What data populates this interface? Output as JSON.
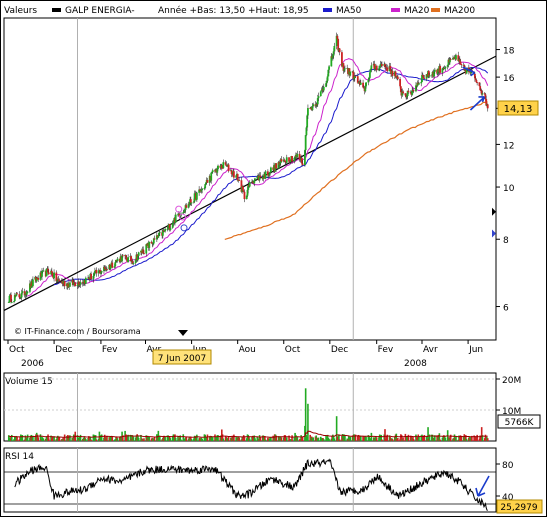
{
  "colors": {
    "up": "#22aa22",
    "down": "#cc2222",
    "wick": "#333333",
    "ma50": "#1a1acc",
    "ma20": "#cc22cc",
    "ma200": "#e07020",
    "trend": "#000000",
    "grid": "#cfcfcf",
    "frame": "#000000",
    "price_box": "#ffd24a",
    "date_box": "#ffe27a",
    "arrow": "#1a3ccc",
    "marker_blue": "#3344cc",
    "marker_pink": "#dd55dd",
    "vol_ma": "#990000",
    "rsi_line": "#000000"
  },
  "chart_data": [
    {
      "type": "line",
      "title": "",
      "legend_placement": "top",
      "legend": {
        "valeurs": "Valeurs",
        "stock": "GALP ENERGIA-",
        "range": "Année +Bas: 13,50 +Haut: 18,95",
        "ma50": "MA50",
        "ma20": "MA20",
        "ma200": "MA200"
      },
      "y_scale": "log",
      "ylim": [
        5.2,
        20.6
      ],
      "yticks": [
        6,
        8,
        10,
        12,
        14,
        16,
        18
      ],
      "last_price_label": "14,13",
      "source": "© IT-Finance.com / Boursorama",
      "date_marker": "7 Jun 2007",
      "x_months": [
        "Oct",
        "Dec",
        "Fev",
        "Avr",
        "Jun",
        "Aou",
        "Oct",
        "Dec",
        "Fev",
        "Avr",
        "Jun"
      ],
      "x_years": [
        "2006",
        "2008"
      ],
      "x_start": "2006-10-01",
      "x_end": "2008-06-30",
      "grid": true,
      "close_anchors": [
        [
          "2006-10-02",
          6.2
        ],
        [
          "2006-10-20",
          6.3
        ],
        [
          "2006-11-10",
          6.8
        ],
        [
          "2006-11-25",
          7.0
        ],
        [
          "2006-12-05",
          6.7
        ],
        [
          "2006-12-20",
          6.6
        ],
        [
          "2007-01-10",
          6.7
        ],
        [
          "2007-01-25",
          6.9
        ],
        [
          "2007-02-10",
          7.1
        ],
        [
          "2007-02-28",
          7.4
        ],
        [
          "2007-03-15",
          7.3
        ],
        [
          "2007-04-01",
          7.7
        ],
        [
          "2007-04-15",
          8.0
        ],
        [
          "2007-05-01",
          8.4
        ],
        [
          "2007-05-15",
          8.9
        ],
        [
          "2007-05-31",
          9.4
        ],
        [
          "2007-06-15",
          9.9
        ],
        [
          "2007-07-01",
          10.7
        ],
        [
          "2007-07-15",
          11.0
        ],
        [
          "2007-08-01",
          10.4
        ],
        [
          "2007-08-10",
          9.6
        ],
        [
          "2007-08-20",
          10.3
        ],
        [
          "2007-09-05",
          10.5
        ],
        [
          "2007-09-20",
          10.9
        ],
        [
          "2007-10-05",
          11.3
        ],
        [
          "2007-10-20",
          11.4
        ],
        [
          "2007-10-28",
          11.0
        ],
        [
          "2007-11-01",
          13.8
        ],
        [
          "2007-11-15",
          14.5
        ],
        [
          "2007-11-25",
          15.6
        ],
        [
          "2007-12-03",
          17.2
        ],
        [
          "2007-12-10",
          18.8
        ],
        [
          "2007-12-17",
          16.8
        ],
        [
          "2008-01-01",
          16.1
        ],
        [
          "2008-01-15",
          15.1
        ],
        [
          "2008-01-25",
          16.6
        ],
        [
          "2008-02-10",
          16.9
        ],
        [
          "2008-02-25",
          16.2
        ],
        [
          "2008-03-05",
          15.0
        ],
        [
          "2008-03-15",
          14.8
        ],
        [
          "2008-04-01",
          16.0
        ],
        [
          "2008-04-20",
          16.4
        ],
        [
          "2008-05-05",
          16.9
        ],
        [
          "2008-05-15",
          17.4
        ],
        [
          "2008-05-25",
          16.6
        ],
        [
          "2008-06-05",
          16.3
        ],
        [
          "2008-06-15",
          15.6
        ],
        [
          "2008-06-27",
          14.13
        ]
      ],
      "ma200_anchors": [
        [
          "2007-07-15",
          8.0
        ],
        [
          "2007-09-01",
          8.4
        ],
        [
          "2007-10-15",
          8.9
        ],
        [
          "2007-12-01",
          10.2
        ],
        [
          "2008-01-20",
          11.6
        ],
        [
          "2008-03-15",
          12.8
        ],
        [
          "2008-05-01",
          13.6
        ],
        [
          "2008-06-27",
          14.4
        ]
      ],
      "trendline": [
        [
          "2006-10-01",
          5.9
        ],
        [
          "2008-06-30",
          17.5
        ]
      ],
      "up_arrows": [
        "2008-06-07",
        "2008-06-20"
      ],
      "markers": [
        {
          "date": "2007-05-15",
          "value": 9.1,
          "color": "pink"
        },
        {
          "date": "2007-05-20",
          "value": 8.8,
          "color": "pink"
        },
        {
          "date": "2007-05-22",
          "value": 8.4,
          "color": "blue"
        }
      ],
      "right_markers": [
        9.0,
        8.2
      ]
    },
    {
      "type": "bar",
      "title": "Volume 15",
      "y_unit": "M",
      "ylim": [
        0,
        20
      ],
      "yticks": [
        10,
        20
      ],
      "ytick_labels": [
        "10M",
        "20M"
      ],
      "last_value_label": "5766K",
      "spikes": [
        {
          "date": "2007-10-30",
          "value": 17
        },
        {
          "date": "2007-11-02",
          "value": 12
        },
        {
          "date": "2007-12-10",
          "value": 8
        },
        {
          "date": "2008-03-15",
          "value": 7
        }
      ]
    },
    {
      "type": "line",
      "title": "RSI 14",
      "ylim": [
        20,
        100
      ],
      "yticks": [
        40,
        80
      ],
      "ytick_labels": [
        "40",
        "80"
      ],
      "reference_lines": [
        30,
        70
      ],
      "last_value_label": "25,2979",
      "anchors": [
        [
          "2006-10-10",
          55
        ],
        [
          "2006-11-01",
          72
        ],
        [
          "2006-11-20",
          76
        ],
        [
          "2006-12-01",
          40
        ],
        [
          "2006-12-20",
          45
        ],
        [
          "2007-01-10",
          48
        ],
        [
          "2007-02-01",
          62
        ],
        [
          "2007-03-01",
          58
        ],
        [
          "2007-04-01",
          72
        ],
        [
          "2007-05-01",
          74
        ],
        [
          "2007-06-01",
          72
        ],
        [
          "2007-07-01",
          75
        ],
        [
          "2007-08-01",
          40
        ],
        [
          "2007-08-15",
          42
        ],
        [
          "2007-09-15",
          62
        ],
        [
          "2007-10-15",
          50
        ],
        [
          "2007-11-01",
          80
        ],
        [
          "2007-12-01",
          82
        ],
        [
          "2007-12-15",
          45
        ],
        [
          "2008-01-15",
          48
        ],
        [
          "2008-02-01",
          65
        ],
        [
          "2008-03-01",
          40
        ],
        [
          "2008-04-01",
          56
        ],
        [
          "2008-05-01",
          70
        ],
        [
          "2008-05-20",
          58
        ],
        [
          "2008-06-10",
          38
        ],
        [
          "2008-06-27",
          25
        ]
      ]
    }
  ]
}
